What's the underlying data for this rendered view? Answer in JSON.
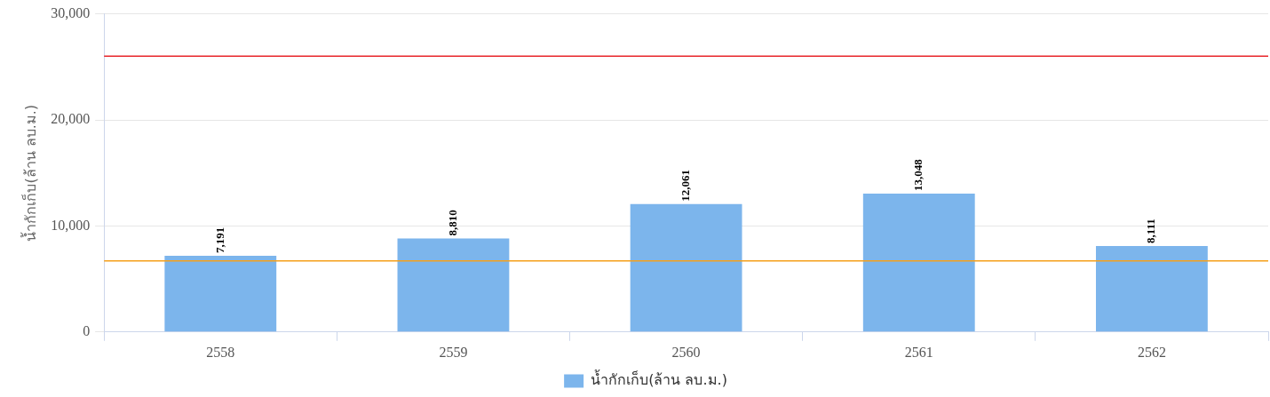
{
  "chart_data": {
    "type": "bar",
    "ylabel": "น้ำกักเก็บ(ล้าน ลบ.ม.)",
    "categories": [
      "2558",
      "2559",
      "2560",
      "2561",
      "2562"
    ],
    "series": [
      {
        "name": "น้ำกักเก็บ(ล้าน ลบ.ม.)",
        "color": "#7cb5ec",
        "values": [
          7191,
          8810,
          12061,
          13048,
          8111
        ],
        "value_labels": [
          "7,191",
          "8,810",
          "12,061",
          "13,048",
          "8,111"
        ]
      }
    ],
    "ylim": [
      0,
      30000
    ],
    "yticks": [
      0,
      {
        "value": 10000,
        "label": "10,000"
      },
      {
        "value": 20000,
        "label": "20,000"
      },
      {
        "value": 30000,
        "label": "30,000"
      }
    ],
    "ref_lines": [
      {
        "axis": "y",
        "value": 26000,
        "color": "#e8262b"
      },
      {
        "axis": "y",
        "value": 6700,
        "color": "#f5a01a"
      }
    ],
    "grid": "y",
    "legend": "bottom"
  }
}
